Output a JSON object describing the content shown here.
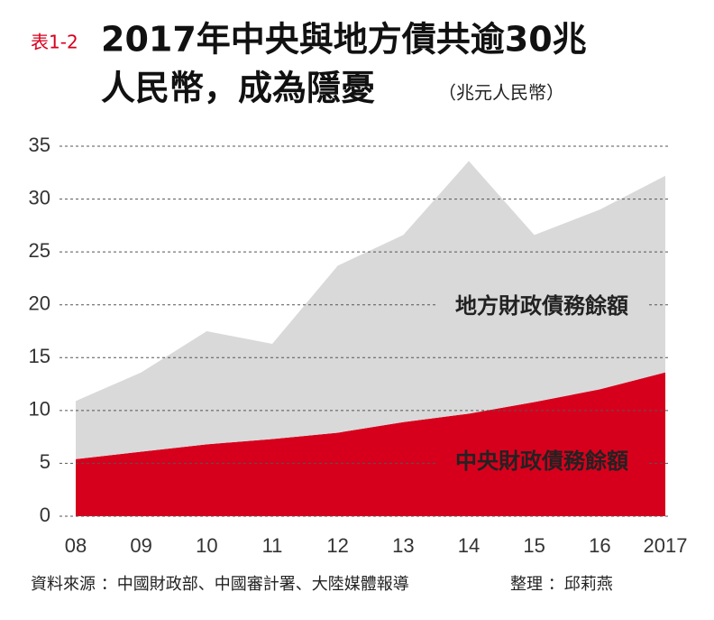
{
  "chart_data": {
    "type": "stacked-area",
    "label": "表1-2",
    "title": [
      "2017年中央與地方債共逾30兆",
      "人民幣，成為隱憂"
    ],
    "unit": "（兆元人民幣）",
    "categories": [
      "08",
      "09",
      "10",
      "11",
      "12",
      "13",
      "14",
      "15",
      "16",
      "2017"
    ],
    "series": [
      {
        "name": "中央財政債務餘額",
        "color": "#d7001c",
        "values": [
          5.4,
          6.1,
          6.8,
          7.3,
          7.9,
          8.9,
          9.7,
          10.8,
          12.0,
          13.6
        ]
      },
      {
        "name": "地方財政債務餘額",
        "color": "#d9d9d9",
        "values": [
          5.5,
          7.5,
          10.7,
          9.0,
          15.8,
          17.7,
          23.9,
          15.8,
          17.0,
          18.6
        ]
      }
    ],
    "ylim": [
      0,
      35
    ],
    "yticks": [
      0,
      5,
      10,
      15,
      20,
      25,
      30,
      35
    ],
    "grid": true,
    "source": "資料來源 ：中國財政部、中國審計署、大陸媒體報導",
    "editor": "整理 ：邱莉燕"
  }
}
